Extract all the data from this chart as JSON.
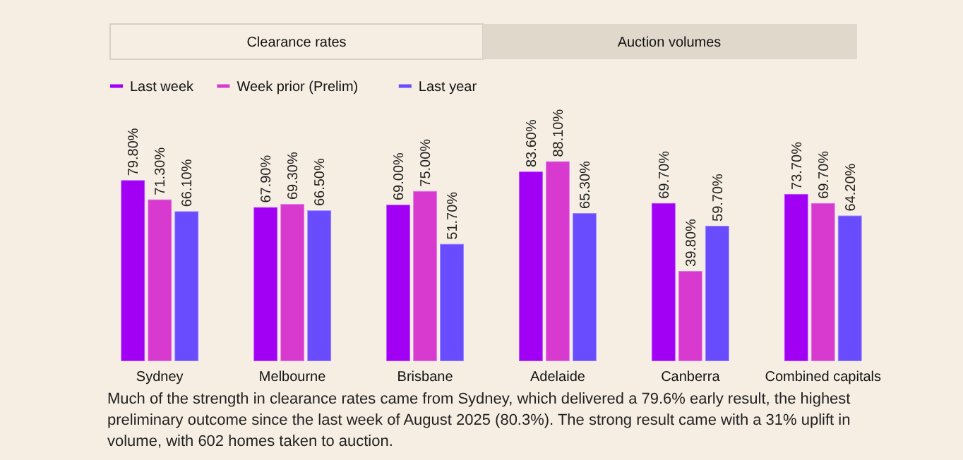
{
  "chart_data": {
    "type": "bar",
    "categories": [
      "Sydney",
      "Melbourne",
      "Brisbane",
      "Adelaide",
      "Canberra",
      "Combined capitals"
    ],
    "series": [
      {
        "name": "Last week",
        "color": "#a100f5",
        "values": [
          79.8,
          67.9,
          69.0,
          83.6,
          69.7,
          73.7
        ],
        "value_labels": [
          "79.80%",
          "67.90%",
          "69.00%",
          "83.60%",
          "69.70%",
          "73.70%"
        ]
      },
      {
        "name": "Week prior (Prelim)",
        "color": "#d83ad0",
        "values": [
          71.3,
          69.3,
          75.0,
          88.1,
          39.8,
          69.7
        ],
        "value_labels": [
          "71.30%",
          "69.30%",
          "75.00%",
          "88.10%",
          "39.80%",
          "69.70%"
        ]
      },
      {
        "name": "Last year",
        "color": "#6a4cff",
        "values": [
          66.1,
          66.5,
          51.7,
          65.3,
          59.7,
          64.2
        ],
        "value_labels": [
          "66.10%",
          "66.50%",
          "51.70%",
          "65.30%",
          "59.70%",
          "64.20%"
        ]
      }
    ],
    "legend": "top left",
    "annotations": [
      "Clearance rates",
      "Auction volumes",
      "Much of the strength in clearance rates came from Sydney, which delivered a 79.6% early result, the highest preliminary outcome since the last week of August 2025 (80.3%). The strong result came with a 31% uplift in volume, with 602 homes taken to auction."
    ]
  }
}
